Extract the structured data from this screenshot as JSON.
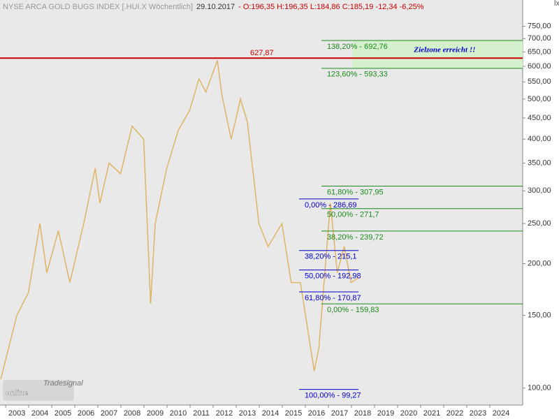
{
  "chart_data": {
    "type": "line",
    "header": [
      {
        "text": "NYSE ARCA GOLD BUGS INDEX [.HUI.X  Wöchentlich]",
        "color": "#999999"
      },
      {
        "text": "29.10.2017",
        "color": "#333333"
      },
      {
        "text": "- O:196,35 H:196,35 L:184,86 C:185,19 -12,34 -6,25%",
        "color": "#cc0000"
      }
    ],
    "corner_mark": "lx",
    "logo": {
      "brand": "Tradesignal",
      "name": "online"
    },
    "log_scale": true,
    "xlim": [
      2002.27,
      2024.94
    ],
    "xticks": [
      2003,
      2004,
      2005,
      2006,
      2007,
      2008,
      2009,
      2010,
      2011,
      2012,
      2013,
      2014,
      2015,
      2016,
      2017,
      2018,
      2019,
      2020,
      2021,
      2022,
      2023,
      2024
    ],
    "ylim": [
      91,
      868
    ],
    "yticks": [
      {
        "value": 100,
        "label": "100,00"
      },
      {
        "value": 150,
        "label": "150,00"
      },
      {
        "value": 200,
        "label": "200,00"
      },
      {
        "value": 250,
        "label": "250,00"
      },
      {
        "value": 300,
        "label": "300,00"
      },
      {
        "value": 350,
        "label": "350,00"
      },
      {
        "value": 400,
        "label": "400,00"
      },
      {
        "value": 450,
        "label": "450,00"
      },
      {
        "value": 500,
        "label": "500,00"
      },
      {
        "value": 550,
        "label": "550,00"
      },
      {
        "value": 600,
        "label": "600,00"
      },
      {
        "value": 650,
        "label": "650,00"
      },
      {
        "value": 700,
        "label": "700,00"
      },
      {
        "value": 750,
        "label": "750,00"
      }
    ],
    "series": [
      {
        "name": ".HUI.X",
        "color": "#e0b464",
        "x": [
          2002.3,
          2003.0,
          2003.5,
          2004.0,
          2004.3,
          2004.8,
          2005.3,
          2005.9,
          2006.4,
          2006.6,
          2007.0,
          2007.5,
          2008.0,
          2008.5,
          2008.8,
          2009.0,
          2009.5,
          2010.0,
          2010.5,
          2010.9,
          2011.2,
          2011.7,
          2011.9,
          2012.3,
          2012.7,
          2013.0,
          2013.5,
          2013.9,
          2014.5,
          2014.9,
          2015.3,
          2015.9,
          2016.1,
          2016.6,
          2016.9,
          2017.2,
          2017.5,
          2017.83
        ],
        "values": [
          105,
          150,
          170,
          250,
          190,
          240,
          180,
          250,
          340,
          280,
          350,
          330,
          430,
          400,
          160,
          250,
          340,
          420,
          470,
          560,
          520,
          620,
          510,
          400,
          500,
          440,
          250,
          220,
          250,
          180,
          180,
          110,
          125,
          280,
          190,
          220,
          180,
          185
        ]
      }
    ],
    "levels": [
      {
        "value": 627.87,
        "label": "627,87",
        "color": "#cc0000",
        "x": [
          2002.27,
          2024.94
        ]
      },
      {
        "value": 692.76,
        "label": "138,20% - 692,76",
        "color": "#1a8a1a",
        "x": [
          2016.21,
          2024.94
        ]
      },
      {
        "value": 593.33,
        "label": "123,60% - 593,33",
        "color": "#1a8a1a",
        "x": [
          2016.21,
          2024.94
        ]
      },
      {
        "value": 307.95,
        "label": "61,80% - 307,95",
        "color": "#1a8a1a",
        "x": [
          2016.21,
          2024.94
        ]
      },
      {
        "value": 271.7,
        "label": "50,00% - 271,7",
        "color": "#1a8a1a",
        "x": [
          2016.21,
          2024.94
        ]
      },
      {
        "value": 239.72,
        "label": "38,20% - 239,72",
        "color": "#1a8a1a",
        "x": [
          2016.21,
          2024.94
        ]
      },
      {
        "value": 159.83,
        "label": "0,00% - 159,83",
        "color": "#1a8a1a",
        "x": [
          2016.21,
          2024.94
        ]
      },
      {
        "value": 286.69,
        "label": "0,00% - 286,69",
        "color": "#0000cc",
        "x": [
          2015.24,
          2017.82
        ]
      },
      {
        "value": 215.1,
        "label": "38,20% - 215,1",
        "color": "#0000cc",
        "x": [
          2015.24,
          2017.82
        ]
      },
      {
        "value": 192.98,
        "label": "50,00% - 192,98",
        "color": "#0000cc",
        "x": [
          2015.24,
          2017.82
        ]
      },
      {
        "value": 170.87,
        "label": "61,80% - 170,87",
        "color": "#0000cc",
        "x": [
          2015.24,
          2017.82
        ]
      },
      {
        "value": 99.27,
        "label": "100,00% - 99,27",
        "color": "#0000cc",
        "x": [
          2015.24,
          2017.82
        ]
      }
    ],
    "zone": {
      "text": "Zielzone erreicht !!",
      "low": 593.33,
      "high": 692.76,
      "x": [
        2017.57,
        2024.94
      ],
      "color": "#d4f0cc"
    }
  }
}
